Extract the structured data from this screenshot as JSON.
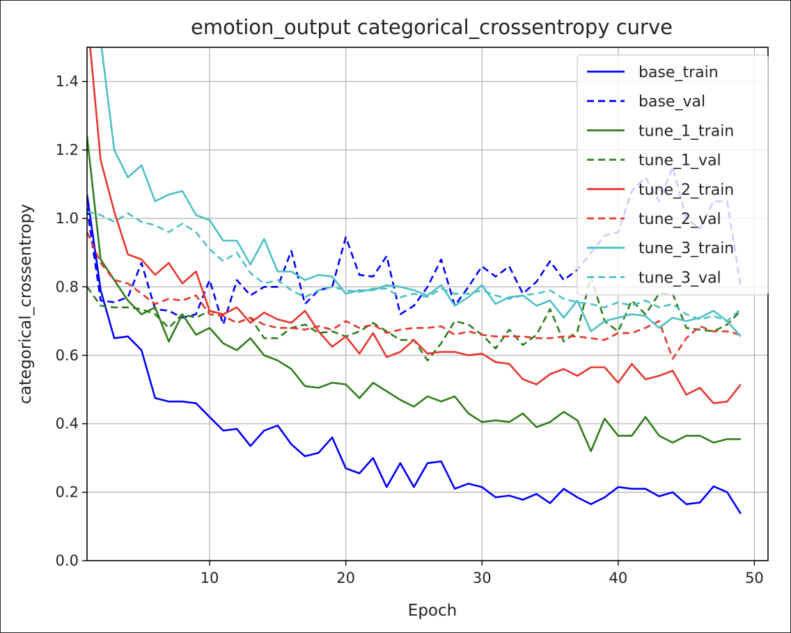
{
  "chart_data": {
    "type": "line",
    "title": "emotion_output categorical_crossentropy curve",
    "xlabel": "Epoch",
    "ylabel": "categorical_crossentropy",
    "xlim": [
      1,
      51
    ],
    "ylim": [
      0.0,
      1.5
    ],
    "xticks": [
      10,
      20,
      30,
      40,
      50
    ],
    "yticks": [
      0.0,
      0.2,
      0.4,
      0.6,
      0.8,
      1.0,
      1.2,
      1.4
    ],
    "ytick_labels": [
      "0.0",
      "0.2",
      "0.4",
      "0.6",
      "0.8",
      "1.0",
      "1.2",
      "1.4"
    ],
    "grid": true,
    "legend_position": "top-right",
    "x": [
      1,
      2,
      3,
      4,
      5,
      6,
      7,
      8,
      9,
      10,
      11,
      12,
      13,
      14,
      15,
      16,
      17,
      18,
      19,
      20,
      21,
      22,
      23,
      24,
      25,
      26,
      27,
      28,
      29,
      30,
      31,
      32,
      33,
      34,
      35,
      36,
      37,
      38,
      39,
      40,
      41,
      42,
      43,
      44,
      45,
      46,
      47,
      48,
      49
    ],
    "series": [
      {
        "name": "base_train",
        "color": "#0000ff",
        "style": "solid",
        "values": [
          1.07,
          0.79,
          0.65,
          0.655,
          0.615,
          0.475,
          0.465,
          0.465,
          0.46,
          0.42,
          0.38,
          0.385,
          0.335,
          0.38,
          0.395,
          0.34,
          0.305,
          0.315,
          0.36,
          0.27,
          0.255,
          0.3,
          0.215,
          0.285,
          0.215,
          0.285,
          0.29,
          0.21,
          0.225,
          0.215,
          0.185,
          0.19,
          0.178,
          0.195,
          0.168,
          0.21,
          0.185,
          0.165,
          0.185,
          0.215,
          0.21,
          0.21,
          0.188,
          0.2,
          0.165,
          0.17,
          0.217,
          0.2,
          0.137
        ]
      },
      {
        "name": "base_val",
        "color": "#0000ff",
        "style": "dashed",
        "values": [
          1.03,
          0.76,
          0.755,
          0.77,
          0.87,
          0.735,
          0.73,
          0.71,
          0.72,
          0.82,
          0.69,
          0.82,
          0.775,
          0.8,
          0.8,
          0.905,
          0.75,
          0.79,
          0.8,
          0.945,
          0.835,
          0.83,
          0.89,
          0.72,
          0.745,
          0.8,
          0.88,
          0.745,
          0.8,
          0.86,
          0.83,
          0.86,
          0.78,
          0.815,
          0.875,
          0.82,
          0.85,
          0.9,
          0.95,
          0.96,
          1.08,
          1.12,
          1.05,
          1.15,
          1.0,
          0.97,
          1.05,
          1.05,
          0.8
        ]
      },
      {
        "name": "tune_1_train",
        "color": "#2e7d1a",
        "style": "solid",
        "values": [
          1.24,
          0.88,
          0.82,
          0.76,
          0.72,
          0.74,
          0.64,
          0.72,
          0.66,
          0.68,
          0.635,
          0.615,
          0.65,
          0.6,
          0.585,
          0.56,
          0.51,
          0.505,
          0.52,
          0.515,
          0.475,
          0.52,
          0.495,
          0.47,
          0.45,
          0.48,
          0.465,
          0.48,
          0.43,
          0.405,
          0.41,
          0.405,
          0.43,
          0.39,
          0.405,
          0.435,
          0.41,
          0.32,
          0.415,
          0.365,
          0.365,
          0.42,
          0.365,
          0.345,
          0.365,
          0.365,
          0.345,
          0.355,
          0.355
        ]
      },
      {
        "name": "tune_1_val",
        "color": "#2e7d1a",
        "style": "dashed",
        "values": [
          0.8,
          0.745,
          0.74,
          0.74,
          0.735,
          0.72,
          0.68,
          0.72,
          0.71,
          0.73,
          0.715,
          0.695,
          0.71,
          0.65,
          0.65,
          0.68,
          0.69,
          0.665,
          0.67,
          0.655,
          0.67,
          0.695,
          0.67,
          0.645,
          0.645,
          0.585,
          0.635,
          0.7,
          0.69,
          0.66,
          0.62,
          0.675,
          0.63,
          0.66,
          0.735,
          0.64,
          0.67,
          0.83,
          0.7,
          0.67,
          0.76,
          0.72,
          0.78,
          0.78,
          0.68,
          0.675,
          0.67,
          0.69,
          0.73
        ]
      },
      {
        "name": "tune_2_train",
        "color": "#e8352d",
        "style": "solid",
        "values": [
          1.6,
          1.17,
          1.02,
          0.895,
          0.88,
          0.835,
          0.87,
          0.81,
          0.845,
          0.73,
          0.72,
          0.74,
          0.695,
          0.725,
          0.705,
          0.695,
          0.73,
          0.67,
          0.625,
          0.655,
          0.605,
          0.665,
          0.595,
          0.61,
          0.645,
          0.605,
          0.61,
          0.61,
          0.6,
          0.605,
          0.58,
          0.575,
          0.53,
          0.515,
          0.545,
          0.56,
          0.54,
          0.565,
          0.565,
          0.52,
          0.575,
          0.53,
          0.54,
          0.555,
          0.485,
          0.505,
          0.46,
          0.465,
          0.515
        ]
      },
      {
        "name": "tune_2_val",
        "color": "#e8352d",
        "style": "dashed",
        "values": [
          0.96,
          0.87,
          0.82,
          0.81,
          0.78,
          0.75,
          0.765,
          0.76,
          0.775,
          0.72,
          0.715,
          0.695,
          0.71,
          0.69,
          0.68,
          0.68,
          0.675,
          0.685,
          0.675,
          0.7,
          0.68,
          0.69,
          0.665,
          0.675,
          0.68,
          0.68,
          0.685,
          0.66,
          0.67,
          0.66,
          0.655,
          0.655,
          0.655,
          0.65,
          0.65,
          0.655,
          0.655,
          0.65,
          0.645,
          0.665,
          0.665,
          0.68,
          0.7,
          0.59,
          0.65,
          0.685,
          0.67,
          0.67,
          0.66
        ]
      },
      {
        "name": "tune_3_train",
        "color": "#4dbfc6",
        "style": "solid",
        "values": [
          1.62,
          1.52,
          1.2,
          1.12,
          1.155,
          1.05,
          1.07,
          1.08,
          1.01,
          0.995,
          0.935,
          0.935,
          0.865,
          0.94,
          0.845,
          0.845,
          0.82,
          0.835,
          0.83,
          0.78,
          0.79,
          0.79,
          0.805,
          0.8,
          0.79,
          0.775,
          0.805,
          0.745,
          0.77,
          0.805,
          0.75,
          0.77,
          0.775,
          0.745,
          0.76,
          0.71,
          0.76,
          0.67,
          0.7,
          0.71,
          0.72,
          0.715,
          0.68,
          0.71,
          0.7,
          0.71,
          0.73,
          0.7,
          0.655
        ]
      },
      {
        "name": "tune_3_val",
        "color": "#4dbfc6",
        "style": "dashed",
        "values": [
          1.02,
          1.01,
          0.99,
          1.015,
          0.99,
          0.98,
          0.96,
          0.985,
          0.96,
          0.91,
          0.875,
          0.9,
          0.84,
          0.81,
          0.82,
          0.79,
          0.77,
          0.79,
          0.8,
          0.79,
          0.785,
          0.795,
          0.795,
          0.77,
          0.78,
          0.77,
          0.795,
          0.78,
          0.78,
          0.79,
          0.775,
          0.765,
          0.775,
          0.78,
          0.79,
          0.765,
          0.755,
          0.75,
          0.74,
          0.755,
          0.745,
          0.76,
          0.74,
          0.75,
          0.72,
          0.705,
          0.715,
          0.7,
          0.735
        ]
      }
    ]
  }
}
